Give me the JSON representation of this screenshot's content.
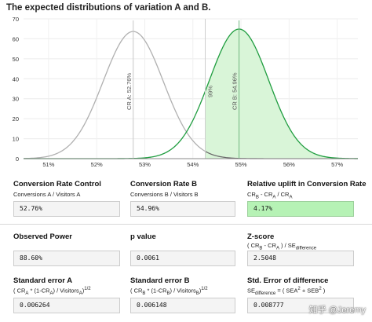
{
  "title": "The expected distributions of variation A and B.",
  "chart_data": {
    "type": "line",
    "title": "The expected distributions of variation A and B.",
    "ylim": [
      0,
      70
    ],
    "y_ticks": [
      "0",
      "10",
      "20",
      "30",
      "40",
      "50",
      "60",
      "70"
    ],
    "x_tick_values": [
      0.51,
      0.52,
      0.53,
      0.54,
      0.55,
      0.56,
      0.57
    ],
    "x_tick_labels": [
      "51%",
      "52%",
      "53%",
      "54%",
      "55%",
      "56%",
      "57%"
    ],
    "xlim": [
      0.5048,
      0.5743
    ],
    "series": [
      {
        "mean": 0.5276,
        "sd": 0.006264,
        "color": "#b0b0b0",
        "label": "CR A: 52.76%"
      },
      {
        "mean": 0.5496,
        "sd": 0.006148,
        "color": "#1f9d3f",
        "fill": "#d9f5d8",
        "label": "CR B: 54.96%"
      }
    ],
    "threshold": {
      "x": 0.54257,
      "label": "99%"
    }
  },
  "metrics": {
    "cr_control": {
      "label": "Conversion Rate Control",
      "formula": "Conversions A / Visitors A",
      "value": "52.76%"
    },
    "cr_b": {
      "label": "Conversion Rate B",
      "formula": "Conversions B / Visitors B",
      "value": "54.96%"
    },
    "uplift": {
      "label": "Relative uplift in Conversion Rate",
      "formula_a": "CR",
      "sub_b": "B",
      "formula_b": " - CR",
      "sub_a": "A",
      "formula_c": " / CR",
      "sub_a2": "A",
      "value": "4.17%",
      "highlight_color": "#b6f2b5"
    },
    "power": {
      "label": "Observed Power",
      "value": "88.60%"
    },
    "pvalue": {
      "label": "p value",
      "value": "0.0061"
    },
    "zscore": {
      "label": "Z-score",
      "formula_a": "( CR",
      "sub_b": "B",
      "formula_b": " - CR",
      "sub_a": "A",
      "formula_c": " ) / SE",
      "sub_diff": "difference",
      "value": "2.5048"
    },
    "se_a": {
      "label": "Standard error A",
      "formula_a": "( CR",
      "sub_a": "A",
      "formula_b": " * (1-CR",
      "sub_a2": "A",
      "formula_c": ") / Visitors",
      "sub_a3": "A",
      "formula_d": ")",
      "sup": "1/2",
      "value": "0.006264"
    },
    "se_b": {
      "label": "Standard error B",
      "formula_a": "( CR",
      "sub_b": "B",
      "formula_b": " * (1-CR",
      "sub_b2": "B",
      "formula_c": ") / Visitors",
      "sub_b3": "B",
      "formula_d": ")",
      "sup": "1/2",
      "value": "0.006148"
    },
    "se_diff": {
      "label": "Std. Error of difference",
      "formula_a": "SE",
      "sub_diff": "difference",
      "formula_b": " = ( SEA",
      "sup1": "2",
      "formula_c": " + SEB",
      "sup2": "2",
      "formula_d": " )",
      "value": "0.008777"
    }
  },
  "watermark": "知乎 @Jeremy"
}
